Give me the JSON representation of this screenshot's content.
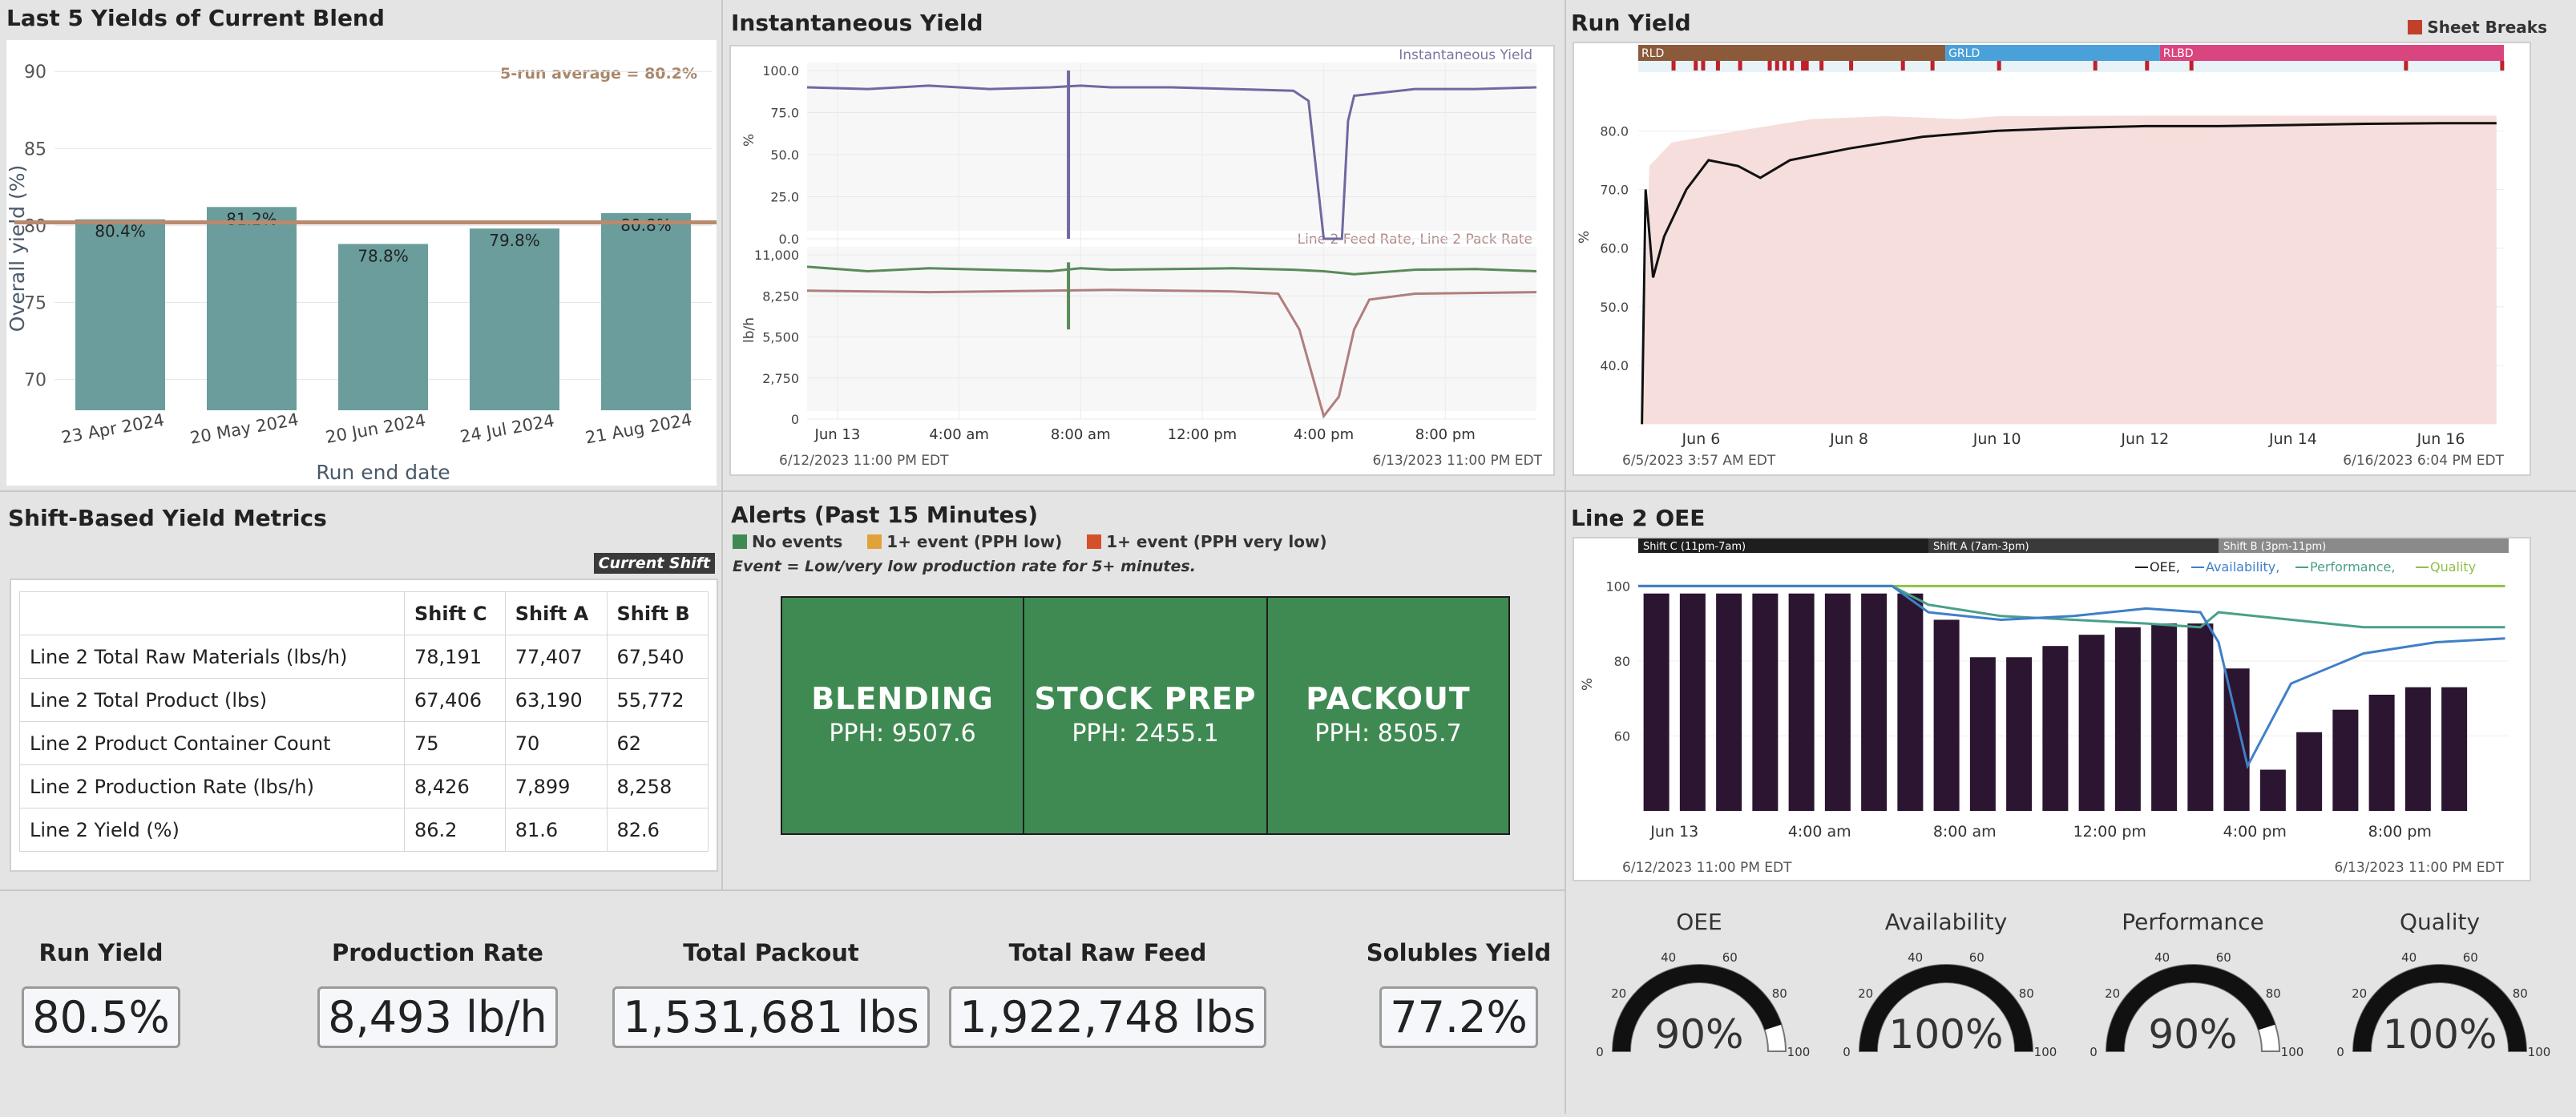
{
  "yields": {
    "title": "Last 5 Yields of Current Blend",
    "ylabel": "Overall yield (%)",
    "xlabel": "Run end date",
    "avg_label": "5-run average = 80.2%"
  },
  "inst": {
    "title": "Instantaneous Yield",
    "series1": "Instantaneous Yield",
    "series2": "Line 2 Feed Rate, Line 2 Pack Rate",
    "y1": "%",
    "y2": "lb/h",
    "start": "6/12/2023 11:00 PM  EDT",
    "end": "6/13/2023 11:00 PM  EDT"
  },
  "run": {
    "title": "Run Yield",
    "legend": "Sheet Breaks",
    "ylabel": "%",
    "start": "6/5/2023 3:57 AM  EDT",
    "end": "6/16/2023 6:04 PM  EDT"
  },
  "shift": {
    "title": "Shift-Based Yield Metrics",
    "badge": "Current Shift",
    "headers": [
      "",
      "Shift C",
      "Shift A",
      "Shift B"
    ],
    "rows": [
      [
        "Line 2 Total Raw Materials (lbs/h)",
        "78,191",
        "77,407",
        "67,540"
      ],
      [
        "Line 2 Total Product (lbs)",
        "67,406",
        "63,190",
        "55,772"
      ],
      [
        "Line 2 Product Container Count",
        "75",
        "70",
        "62"
      ],
      [
        "Line 2 Production Rate (lbs/h)",
        "8,426",
        "7,899",
        "8,258"
      ],
      [
        "Line 2 Yield (%)",
        "86.2",
        "81.6",
        "82.6"
      ]
    ]
  },
  "alerts": {
    "title": "Alerts (Past 15 Minutes)",
    "leg1": "No events",
    "leg2": "1+ event (PPH low)",
    "leg3": "1+ event (PPH very low)",
    "note": "Event = Low/very low production rate for 5+ minutes.",
    "tiles": [
      {
        "name": "BLENDING",
        "pph": "PPH: 9507.6"
      },
      {
        "name": "STOCK PREP",
        "pph": "PPH: 2455.1"
      },
      {
        "name": "PACKOUT",
        "pph": "PPH: 8505.7"
      }
    ]
  },
  "oee": {
    "title": "Line 2 OEE",
    "shifts": [
      "Shift C (11pm-7am)",
      "Shift A (7am-3pm)",
      "Shift B (3pm-11pm)"
    ],
    "legend": [
      "OEE,",
      "Availability,",
      "Performance,",
      "Quality"
    ],
    "ylabel": "%",
    "start": "6/12/2023 11:00 PM  EDT",
    "end": "6/13/2023 11:00 PM  EDT"
  },
  "kpis": [
    {
      "label": "Run Yield",
      "value": "80.5%"
    },
    {
      "label": "Production Rate",
      "value": "8,493 lb/h"
    },
    {
      "label": "Total Packout",
      "value": "1,531,681 lbs"
    },
    {
      "label": "Total Raw Feed",
      "value": "1,922,748 lbs"
    },
    {
      "label": "Solubles Yield",
      "value": "77.2%"
    }
  ],
  "gauges": [
    {
      "label": "OEE",
      "value": 90,
      "text": "90%"
    },
    {
      "label": "Availability",
      "value": 100,
      "text": "100%"
    },
    {
      "label": "Performance",
      "value": 90,
      "text": "90%"
    },
    {
      "label": "Quality",
      "value": 100,
      "text": "100%"
    }
  ],
  "gauge_ticks": [
    "0",
    "20",
    "40",
    "60",
    "80",
    "100"
  ],
  "colors": {
    "bar": "#6a9d9c",
    "tile": "#3f8a52",
    "amber": "#e2a23a",
    "red": "#d4502a",
    "oee_bar": "#2b1530"
  },
  "chart_data": [
    {
      "type": "bar",
      "title": "Last 5 Yields of Current Blend",
      "categories": [
        "23 Apr 2024",
        "20 May 2024",
        "20 Jun 2024",
        "24 Jul 2024",
        "21 Aug 2024"
      ],
      "values": [
        80.4,
        81.2,
        78.8,
        79.8,
        80.8
      ],
      "labels": [
        "80.4%",
        "81.2%",
        "78.8%",
        "79.8%",
        "80.8%"
      ],
      "average": 80.2,
      "ylim": [
        68,
        91
      ],
      "yticks": [
        "70",
        "75",
        "80",
        "85",
        "90"
      ],
      "xlabel": "Run end date",
      "ylabel": "Overall yield (%)"
    },
    {
      "type": "line",
      "title": "Instantaneous Yield",
      "yticks_top": [
        "0.0",
        "25.0",
        "50.0",
        "75.0",
        "100.0"
      ],
      "yticks_bottom": [
        "0",
        "2,750",
        "5,500",
        "8,250",
        "11,000"
      ],
      "xticks": [
        "Jun 13",
        "4:00 am",
        "8:00 am",
        "12:00 pm",
        "4:00 pm",
        "8:00 pm"
      ],
      "x_hours": [
        1,
        5,
        9,
        13,
        17,
        21
      ],
      "yield": [
        [
          0,
          90
        ],
        [
          2,
          89
        ],
        [
          4,
          91
        ],
        [
          6,
          89
        ],
        [
          8,
          90
        ],
        [
          9,
          91
        ],
        [
          10,
          90
        ],
        [
          12,
          90
        ],
        [
          14,
          89
        ],
        [
          16,
          88
        ],
        [
          16.5,
          82
        ],
        [
          17,
          0
        ],
        [
          17.6,
          0
        ],
        [
          17.8,
          70
        ],
        [
          18,
          85
        ],
        [
          20,
          89
        ],
        [
          22,
          89
        ],
        [
          24,
          90
        ]
      ],
      "feed": [
        [
          0,
          10200
        ],
        [
          2,
          9900
        ],
        [
          4,
          10100
        ],
        [
          6,
          10000
        ],
        [
          8,
          9900
        ],
        [
          9,
          10100
        ],
        [
          10,
          10000
        ],
        [
          12,
          10050
        ],
        [
          14,
          10100
        ],
        [
          16,
          10000
        ],
        [
          17,
          9900
        ],
        [
          18,
          9700
        ],
        [
          20,
          10000
        ],
        [
          22,
          10050
        ],
        [
          24,
          9900
        ]
      ],
      "pack": [
        [
          0,
          8600
        ],
        [
          4,
          8500
        ],
        [
          8,
          8600
        ],
        [
          10,
          8650
        ],
        [
          12,
          8600
        ],
        [
          14,
          8550
        ],
        [
          15.5,
          8400
        ],
        [
          16.2,
          6000
        ],
        [
          17,
          200
        ],
        [
          17.5,
          1500
        ],
        [
          18,
          6000
        ],
        [
          18.5,
          8000
        ],
        [
          20,
          8400
        ],
        [
          24,
          8500
        ]
      ]
    },
    {
      "type": "line",
      "title": "Run Yield",
      "categories": [
        "RLD",
        "GRLD",
        "RLBD"
      ],
      "yticks": [
        "40.0",
        "50.0",
        "60.0",
        "70.0",
        "80.0"
      ],
      "xticks": [
        "Jun 6",
        "Jun 8",
        "Jun 10",
        "Jun 12",
        "Jun 14",
        "Jun 16"
      ],
      "series": [
        [
          5.2,
          30
        ],
        [
          5.25,
          70
        ],
        [
          5.35,
          55
        ],
        [
          5.5,
          62
        ],
        [
          5.8,
          70
        ],
        [
          6.1,
          75
        ],
        [
          6.5,
          74
        ],
        [
          6.8,
          72
        ],
        [
          7.2,
          75
        ],
        [
          8,
          77
        ],
        [
          9,
          79
        ],
        [
          10,
          80
        ],
        [
          11,
          80.5
        ],
        [
          12,
          80.8
        ],
        [
          13,
          80.8
        ],
        [
          14,
          81
        ],
        [
          15,
          81.2
        ],
        [
          16,
          81.3
        ],
        [
          16.75,
          81.3
        ]
      ]
    },
    {
      "type": "bar",
      "title": "Line 2 OEE",
      "xticks": [
        "Jun 13",
        "4:00 am",
        "8:00 am",
        "12:00 pm",
        "4:00 pm",
        "8:00 pm"
      ],
      "yticks": [
        "60",
        "80",
        "100"
      ],
      "values": [
        98,
        98,
        98,
        98,
        98,
        98,
        98,
        98,
        91,
        81,
        81,
        84,
        87,
        89,
        90,
        90,
        78,
        51,
        61,
        67,
        71,
        73,
        73
      ],
      "availability": [
        [
          0,
          100
        ],
        [
          7,
          100
        ],
        [
          8,
          93
        ],
        [
          10,
          91
        ],
        [
          12,
          92
        ],
        [
          14,
          94
        ],
        [
          15.5,
          93
        ],
        [
          16,
          85
        ],
        [
          16.8,
          52
        ],
        [
          18,
          74
        ],
        [
          20,
          82
        ],
        [
          22,
          85
        ],
        [
          23.9,
          86
        ]
      ],
      "performance": [
        [
          0,
          100
        ],
        [
          7,
          100
        ],
        [
          8,
          95
        ],
        [
          10,
          92
        ],
        [
          12,
          91
        ],
        [
          14,
          90
        ],
        [
          15.5,
          89
        ],
        [
          16,
          93
        ],
        [
          17,
          92
        ],
        [
          20,
          89
        ],
        [
          23.9,
          89
        ]
      ],
      "quality": [
        [
          0,
          100
        ],
        [
          23.9,
          100
        ]
      ]
    }
  ]
}
